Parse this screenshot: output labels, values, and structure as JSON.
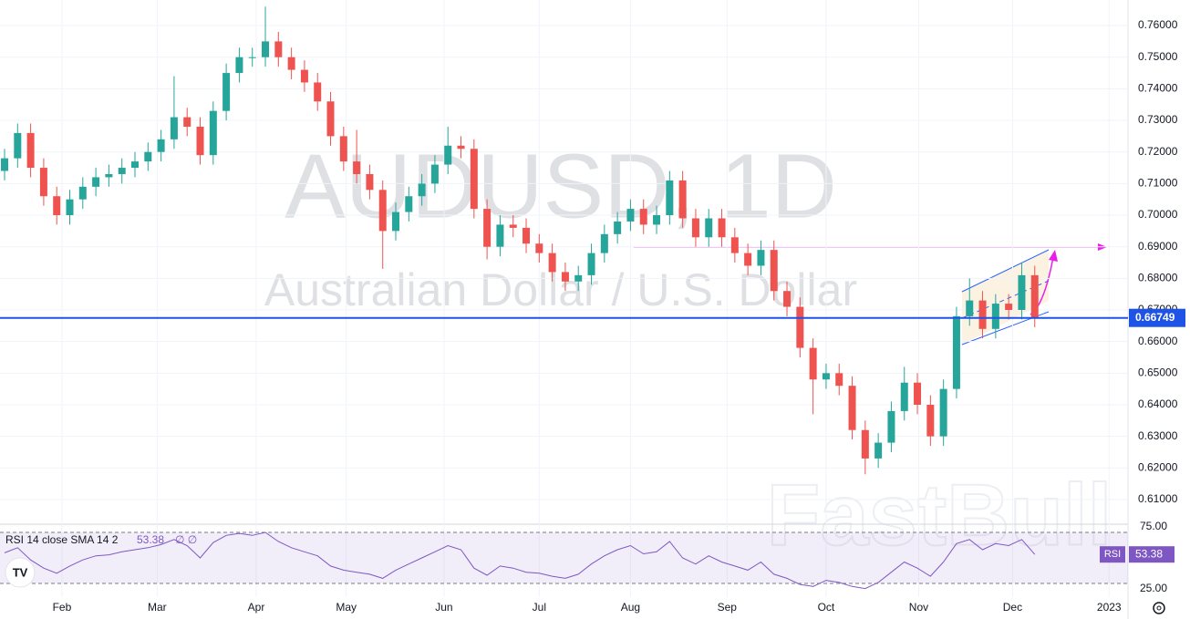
{
  "chart_data": {
    "type": "candlestick",
    "symbol": "AUDUSD, 1D",
    "description": "Australian Dollar / U.S. Dollar",
    "watermark": "FastBull",
    "categories": [
      null,
      null,
      null,
      null,
      null,
      null,
      null,
      null,
      null,
      null,
      null,
      null,
      null,
      null,
      null,
      null,
      null,
      null,
      null,
      null,
      null,
      null,
      null,
      null,
      null,
      null,
      null,
      null,
      null,
      null,
      null,
      null,
      null,
      null,
      null,
      null,
      null,
      null,
      null,
      null,
      null,
      null,
      null,
      null,
      null,
      null,
      null,
      null,
      null,
      null,
      null,
      null,
      null,
      null,
      null,
      null,
      null,
      null,
      null,
      null,
      null,
      null,
      null,
      null,
      null,
      null,
      null,
      null,
      null,
      null,
      null,
      null,
      null,
      null,
      null,
      null,
      null,
      null,
      null,
      null
    ],
    "open": [
      0.714,
      0.718,
      0.726,
      0.715,
      0.706,
      0.7,
      0.705,
      0.709,
      0.712,
      0.713,
      0.715,
      0.717,
      0.72,
      0.724,
      0.731,
      0.728,
      0.719,
      0.733,
      0.745,
      0.75,
      0.75,
      0.755,
      0.75,
      0.746,
      0.742,
      0.736,
      0.725,
      0.717,
      0.713,
      0.708,
      0.695,
      0.701,
      0.706,
      0.71,
      0.716,
      0.722,
      0.721,
      0.702,
      0.69,
      0.697,
      0.696,
      0.691,
      0.688,
      0.682,
      0.679,
      0.681,
      0.688,
      0.694,
      0.698,
      0.702,
      0.697,
      0.7,
      0.711,
      0.699,
      0.693,
      0.699,
      0.693,
      0.688,
      0.684,
      0.689,
      0.676,
      0.671,
      0.658,
      0.648,
      0.65,
      0.646,
      0.632,
      0.623,
      0.628,
      0.638,
      0.647,
      0.64,
      0.63,
      0.645,
      0.668,
      0.673,
      0.664,
      0.672,
      0.67,
      0.681
    ],
    "high": [
      0.721,
      0.729,
      0.729,
      0.718,
      0.709,
      0.708,
      0.712,
      0.715,
      0.716,
      0.718,
      0.72,
      0.723,
      0.727,
      0.744,
      0.734,
      0.731,
      0.736,
      0.748,
      0.753,
      0.753,
      0.766,
      0.758,
      0.753,
      0.749,
      0.745,
      0.739,
      0.728,
      0.727,
      0.716,
      0.711,
      0.704,
      0.709,
      0.713,
      0.719,
      0.728,
      0.725,
      0.724,
      0.705,
      0.7,
      0.7,
      0.699,
      0.694,
      0.691,
      0.685,
      0.684,
      0.691,
      0.697,
      0.701,
      0.705,
      0.705,
      0.703,
      0.714,
      0.714,
      0.702,
      0.702,
      0.702,
      0.696,
      0.691,
      0.692,
      0.692,
      0.679,
      0.674,
      0.661,
      0.653,
      0.653,
      0.649,
      0.635,
      0.631,
      0.641,
      0.652,
      0.65,
      0.643,
      0.648,
      0.671,
      0.68,
      0.676,
      0.675,
      0.675,
      0.685,
      0.684
    ],
    "low": [
      0.711,
      0.715,
      0.712,
      0.703,
      0.697,
      0.697,
      0.702,
      0.706,
      0.709,
      0.71,
      0.712,
      0.714,
      0.717,
      0.721,
      0.725,
      0.716,
      0.716,
      0.73,
      0.742,
      0.747,
      0.747,
      0.747,
      0.743,
      0.739,
      0.733,
      0.722,
      0.714,
      0.71,
      0.705,
      0.683,
      0.692,
      0.698,
      0.703,
      0.707,
      0.713,
      0.718,
      0.699,
      0.686,
      0.687,
      0.693,
      0.688,
      0.685,
      0.679,
      0.676,
      0.676,
      0.678,
      0.685,
      0.691,
      0.695,
      0.694,
      0.694,
      0.697,
      0.696,
      0.69,
      0.69,
      0.69,
      0.685,
      0.681,
      0.681,
      0.673,
      0.668,
      0.655,
      0.637,
      0.645,
      0.643,
      0.629,
      0.618,
      0.62,
      0.625,
      0.635,
      0.637,
      0.627,
      0.627,
      0.642,
      0.665,
      0.661,
      0.661,
      0.667,
      0.667,
      0.6645
    ],
    "close": [
      0.718,
      0.726,
      0.715,
      0.706,
      0.7,
      0.705,
      0.709,
      0.712,
      0.713,
      0.715,
      0.717,
      0.72,
      0.724,
      0.731,
      0.728,
      0.719,
      0.733,
      0.745,
      0.75,
      0.75,
      0.755,
      0.75,
      0.746,
      0.742,
      0.736,
      0.725,
      0.717,
      0.713,
      0.708,
      0.695,
      0.701,
      0.706,
      0.71,
      0.716,
      0.722,
      0.721,
      0.702,
      0.69,
      0.697,
      0.696,
      0.691,
      0.688,
      0.682,
      0.679,
      0.681,
      0.688,
      0.694,
      0.698,
      0.702,
      0.697,
      0.7,
      0.711,
      0.699,
      0.693,
      0.699,
      0.693,
      0.688,
      0.684,
      0.689,
      0.676,
      0.671,
      0.658,
      0.648,
      0.65,
      0.646,
      0.632,
      0.623,
      0.628,
      0.638,
      0.647,
      0.64,
      0.63,
      0.645,
      0.668,
      0.673,
      0.664,
      0.672,
      0.67,
      0.681,
      0.66749
    ],
    "up_color": "#26a69a",
    "down_color": "#ef5350",
    "price_line_color": "#1e53e5",
    "ylim": [
      0.6022,
      0.7681
    ],
    "yticks": [
      {
        "value": 0.61,
        "label": "0.61000"
      },
      {
        "value": 0.62,
        "label": "0.62000"
      },
      {
        "value": 0.63,
        "label": "0.63000"
      },
      {
        "value": 0.64,
        "label": "0.64000"
      },
      {
        "value": 0.65,
        "label": "0.65000"
      },
      {
        "value": 0.66,
        "label": "0.66000"
      },
      {
        "value": 0.67,
        "label": "0.67000"
      },
      {
        "value": 0.68,
        "label": "0.68000"
      },
      {
        "value": 0.69,
        "label": "0.69000"
      },
      {
        "value": 0.7,
        "label": "0.70000"
      },
      {
        "value": 0.71,
        "label": "0.71000"
      },
      {
        "value": 0.72,
        "label": "0.72000"
      },
      {
        "value": 0.73,
        "label": "0.73000"
      },
      {
        "value": 0.74,
        "label": "0.74000"
      },
      {
        "value": 0.75,
        "label": "0.75000"
      },
      {
        "value": 0.76,
        "label": "0.76000"
      }
    ],
    "xlim": [
      -0.35,
      86.15
    ],
    "xticks": [
      {
        "value": 4.4,
        "label": "Feb"
      },
      {
        "value": 11.7,
        "label": "Mar"
      },
      {
        "value": 19.3,
        "label": "Apr"
      },
      {
        "value": 26.2,
        "label": "May"
      },
      {
        "value": 33.7,
        "label": "Jun"
      },
      {
        "value": 41,
        "label": "Jul"
      },
      {
        "value": 48,
        "label": "Aug"
      },
      {
        "value": 55.4,
        "label": "Sep"
      },
      {
        "value": 63,
        "label": "Oct"
      },
      {
        "value": 70.1,
        "label": "Nov"
      },
      {
        "value": 77.3,
        "label": "Dec"
      },
      {
        "value": 84.7,
        "label": "2023"
      }
    ],
    "grid": true,
    "rsi": {
      "legend": "RSI 14 close SMA 14 2",
      "extra": "∅ ∅",
      "badge": "RSI",
      "color": "#7e57c2",
      "values": [
        55,
        60,
        48,
        40,
        35,
        42,
        48,
        52,
        53,
        56,
        58,
        60,
        63,
        68,
        62,
        50,
        65,
        72,
        74,
        72,
        75,
        66,
        60,
        56,
        52,
        42,
        38,
        36,
        34,
        30,
        38,
        44,
        50,
        56,
        62,
        58,
        40,
        33,
        42,
        40,
        36,
        35,
        32,
        30,
        34,
        44,
        52,
        58,
        62,
        54,
        56,
        66,
        50,
        44,
        52,
        46,
        42,
        38,
        46,
        34,
        30,
        24,
        22,
        28,
        26,
        22,
        20,
        26,
        36,
        46,
        40,
        32,
        46,
        64,
        68,
        58,
        64,
        62,
        68,
        53.38
      ],
      "ylim": [
        11.6,
        83
      ],
      "yticks": [
        {
          "value": 75,
          "label": "75.00"
        },
        {
          "value": 25,
          "label": "25.00"
        }
      ]
    }
  }
}
